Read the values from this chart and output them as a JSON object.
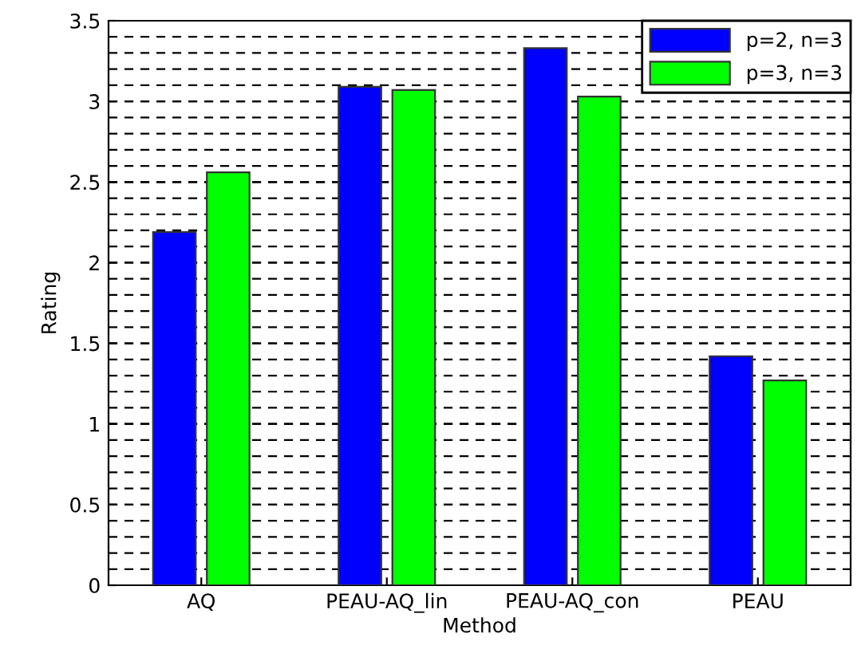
{
  "chart_data": {
    "type": "bar",
    "xlabel": "Method",
    "ylabel": "Rating",
    "categories": [
      "AQ",
      "PEAU-AQ_lin",
      "PEAU-AQ_con",
      "PEAU"
    ],
    "series": [
      {
        "name": "p=2, n=3",
        "color": "#0000ff",
        "values": [
          2.19,
          3.09,
          3.33,
          1.42
        ]
      },
      {
        "name": "p=3, n=3",
        "color": "#00ff00",
        "values": [
          2.56,
          3.07,
          3.03,
          1.27
        ]
      }
    ],
    "ylim": [
      0,
      3.5
    ],
    "yticks": [
      0,
      0.5,
      1,
      1.5,
      2,
      2.5,
      3,
      3.5
    ],
    "grid": "y",
    "legend": "top right"
  }
}
